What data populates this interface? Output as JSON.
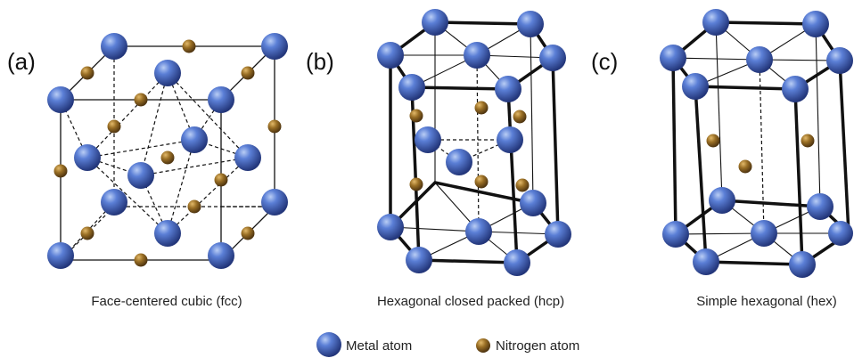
{
  "panels": [
    {
      "label": "(a)",
      "caption": "Face-centered cubic (fcc)"
    },
    {
      "label": "(b)",
      "caption": "Hexagonal closed packed (hcp)"
    },
    {
      "label": "(c)",
      "caption": "Simple hexagonal (hex)"
    }
  ],
  "legend": {
    "metal_label": "Metal atom",
    "nitrogen_label": "Nitrogen atom"
  },
  "colors": {
    "metal": "#3f5fb8",
    "nitrogen": "#8a6420",
    "bond": "#111111"
  }
}
